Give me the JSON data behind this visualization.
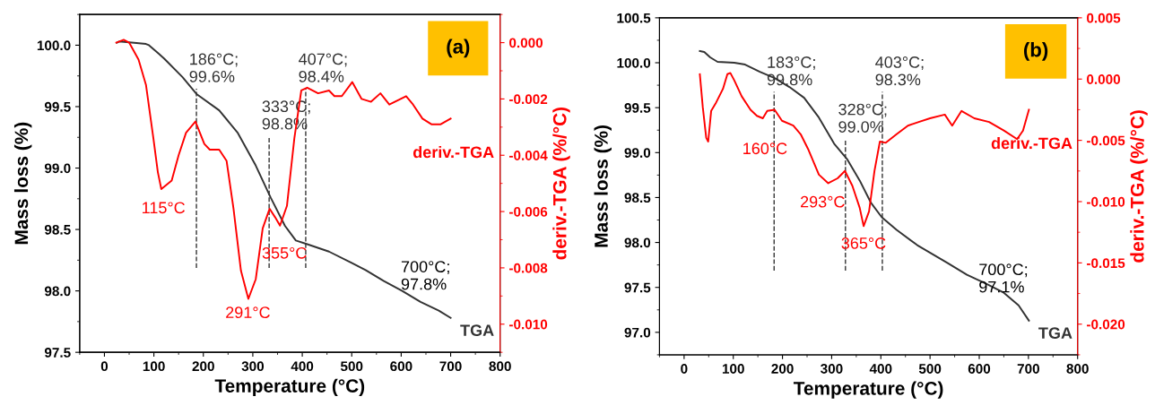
{
  "chart_data": [
    {
      "type": "line",
      "xlabel": "Temperature (°C)",
      "ylabel": "Mass loss (%)",
      "y2label": "deriv.-TGA (%/°C)",
      "xlim": [
        -50,
        800
      ],
      "xticks": [
        0,
        100,
        200,
        300,
        400,
        500,
        600,
        700,
        800
      ],
      "ylim": [
        97.5,
        100.25
      ],
      "yticks": [
        {
          "value": 97.5,
          "label": "97.5"
        },
        {
          "value": 98,
          "label": "98.0"
        },
        {
          "value": 98.5,
          "label": "98.5"
        },
        {
          "value": 99,
          "label": "99.0"
        },
        {
          "value": 99.5,
          "label": "99.5"
        },
        {
          "value": 100,
          "label": "100.0"
        }
      ],
      "y2lim": [
        -0.011,
        0.001
      ],
      "y2ticks": [
        {
          "value": -0.01,
          "label": "-0.010"
        },
        {
          "value": -0.008,
          "label": "-0.008"
        },
        {
          "value": -0.006,
          "label": "-0.006"
        },
        {
          "value": -0.004,
          "label": "-0.004"
        },
        {
          "value": -0.002,
          "label": "-0.002"
        },
        {
          "value": 0,
          "label": "0.000"
        }
      ],
      "grid": false,
      "legend": false,
      "series": [
        {
          "name": "TGA",
          "color": "#333333",
          "x": [
            25,
            30,
            60,
            84,
            90,
            110,
            121,
            158,
            187,
            232,
            269,
            306,
            336,
            365,
            387,
            410,
            454,
            499,
            528,
            565,
            602,
            639,
            676,
            700
          ],
          "values": [
            100.02,
            100.03,
            100.02,
            100.01,
            100.0,
            99.93,
            99.89,
            99.74,
            99.6,
            99.47,
            99.29,
            99.02,
            98.76,
            98.53,
            98.41,
            98.38,
            98.32,
            98.23,
            98.17,
            98.08,
            98.0,
            97.91,
            97.84,
            97.78
          ]
        },
        {
          "name": "deriv.-TGA",
          "color": "#ff0000",
          "axis": "y2",
          "x": [
            24,
            39,
            50,
            69,
            84,
            99,
            108,
            115,
            136,
            150,
            165,
            184,
            202,
            213,
            232,
            247,
            261,
            276,
            291,
            306,
            320,
            334,
            345,
            355,
            369,
            384,
            398,
            410,
            432,
            454,
            465,
            480,
            501,
            520,
            539,
            558,
            576,
            610,
            624,
            643,
            661,
            680,
            700
          ],
          "values": [
            0.0,
            0.0001,
            0.0,
            -0.0006,
            -0.0015,
            -0.0034,
            -0.0046,
            -0.0052,
            -0.0049,
            -0.004,
            -0.0032,
            -0.0028,
            -0.0036,
            -0.0038,
            -0.0038,
            -0.0042,
            -0.0059,
            -0.0081,
            -0.0091,
            -0.0084,
            -0.0066,
            -0.0059,
            -0.0062,
            -0.0065,
            -0.0058,
            -0.0034,
            -0.0017,
            -0.0016,
            -0.0018,
            -0.0017,
            -0.0019,
            -0.0019,
            -0.0014,
            -0.002,
            -0.0021,
            -0.0018,
            -0.0022,
            -0.0019,
            -0.0022,
            -0.0027,
            -0.0029,
            -0.0029,
            -0.0027
          ],
          "line_style": "solid"
        }
      ],
      "ref_lines": [
        {
          "axis": "x",
          "value": 186,
          "label": "186°C;\n99.6%",
          "line_style": "dashed",
          "color": "#333333"
        },
        {
          "axis": "x",
          "value": 333,
          "label": "333°C;\n98.8%",
          "line_style": "dashed",
          "color": "#333333"
        },
        {
          "axis": "x",
          "value": 407,
          "label": "407°C;\n98.4%",
          "line_style": "dashed",
          "color": "#333333"
        }
      ],
      "annotations": [
        "(a)",
        {
          "text": "700°C;\n97.8%",
          "x": 700,
          "y": 97.78
        },
        "115°C",
        "291°C",
        "355°C"
      ]
    },
    {
      "type": "line",
      "xlabel": "Temperature (°C)",
      "ylabel": "Mass loss (%)",
      "y2label": "deriv.-TGA (%/°C)",
      "xlim": [
        -50,
        800
      ],
      "xticks": [
        0,
        100,
        200,
        300,
        400,
        500,
        600,
        700,
        800
      ],
      "ylim": [
        96.75,
        100.5
      ],
      "yticks": [
        {
          "value": 97,
          "label": "97.0"
        },
        {
          "value": 97.5,
          "label": "97.5"
        },
        {
          "value": 98,
          "label": "98.0"
        },
        {
          "value": 98.5,
          "label": "98.5"
        },
        {
          "value": 99,
          "label": "99.0"
        },
        {
          "value": 99.5,
          "label": "99.5"
        },
        {
          "value": 100,
          "label": "100.0"
        },
        {
          "value": 100.5,
          "label": "100.5"
        }
      ],
      "y2lim": [
        -0.0225,
        0.005
      ],
      "y2ticks": [
        {
          "value": -0.02,
          "label": "-0.020"
        },
        {
          "value": -0.015,
          "label": "-0.015"
        },
        {
          "value": -0.01,
          "label": "-0.010"
        },
        {
          "value": -0.005,
          "label": "-0.005"
        },
        {
          "value": 0,
          "label": "0.000"
        },
        {
          "value": 0.005,
          "label": "0.005"
        }
      ],
      "grid": false,
      "legend": false,
      "series": [
        {
          "name": "TGA",
          "color": "#333333",
          "x": [
            32,
            41,
            53,
            68,
            102,
            124,
            154,
            184,
            214,
            244,
            274,
            305,
            331,
            357,
            380,
            402,
            432,
            474,
            505,
            536,
            575,
            614,
            650,
            680,
            701
          ],
          "values": [
            100.13,
            100.12,
            100.06,
            100.01,
            100.0,
            99.98,
            99.9,
            99.83,
            99.73,
            99.61,
            99.39,
            99.1,
            98.93,
            98.69,
            98.44,
            98.28,
            98.14,
            97.97,
            97.87,
            97.77,
            97.64,
            97.54,
            97.44,
            97.3,
            97.13
          ]
        },
        {
          "name": "deriv.-TGA",
          "color": "#ff0000",
          "axis": "y2",
          "x": [
            32,
            38,
            45,
            49,
            55,
            64,
            79,
            88,
            94,
            102,
            117,
            135,
            148,
            160,
            169,
            184,
            199,
            222,
            237,
            252,
            274,
            293,
            312,
            327,
            342,
            357,
            365,
            376,
            387,
            398,
            410,
            432,
            455,
            477,
            500,
            530,
            545,
            564,
            590,
            620,
            650,
            677,
            689,
            701
          ],
          "values": [
            0.0004,
            -0.0023,
            -0.0048,
            -0.0051,
            -0.0026,
            -0.002,
            -0.0008,
            0.0004,
            0.0005,
            -0.0001,
            -0.0014,
            -0.0025,
            -0.003,
            -0.0032,
            -0.0026,
            -0.0025,
            -0.0034,
            -0.0038,
            -0.0045,
            -0.0057,
            -0.0078,
            -0.0085,
            -0.0081,
            -0.0075,
            -0.0087,
            -0.0105,
            -0.012,
            -0.0108,
            -0.0075,
            -0.0051,
            -0.0052,
            -0.0045,
            -0.0038,
            -0.0035,
            -0.0032,
            -0.0029,
            -0.0038,
            -0.0026,
            -0.0032,
            -0.0035,
            -0.0042,
            -0.0049,
            -0.0042,
            -0.0025
          ],
          "line_style": "solid"
        }
      ],
      "ref_lines": [
        {
          "axis": "x",
          "value": 183,
          "label": "183°C;\n99.8%",
          "line_style": "dashed",
          "color": "#333333"
        },
        {
          "axis": "x",
          "value": 328,
          "label": "328°C;\n99.0%",
          "line_style": "dashed",
          "color": "#333333"
        },
        {
          "axis": "x",
          "value": 403,
          "label": "403°C;\n98.3%",
          "line_style": "dashed",
          "color": "#333333"
        }
      ],
      "annotations": [
        "(b)",
        {
          "text": "700°C;\n97.1%",
          "x": 700,
          "y": 97.13
        },
        "160°C",
        "293°C",
        "365°C"
      ]
    }
  ]
}
